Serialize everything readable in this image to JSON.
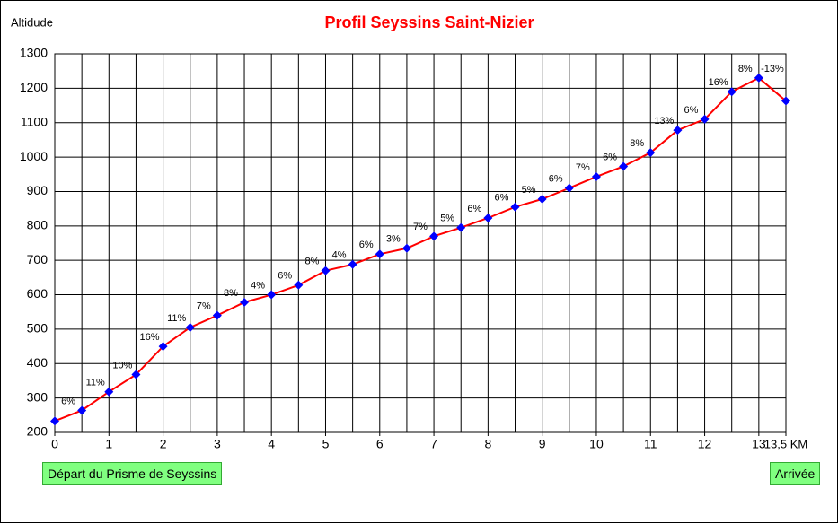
{
  "chart_data": {
    "type": "line",
    "title": "Profil Seyssins Saint-Nizier",
    "y_label": "Altidude",
    "x": [
      0,
      0.5,
      1,
      1.5,
      2,
      2.5,
      3,
      3.5,
      4,
      4.5,
      5,
      5.5,
      6,
      6.5,
      7,
      7.5,
      8,
      8.5,
      9,
      9.5,
      10,
      10.5,
      11,
      11.5,
      12,
      12.5,
      13,
      13.5
    ],
    "series": [
      {
        "color": "#ff0000",
        "marker_color": "#0000ff",
        "values": [
          233,
          264,
          318,
          368,
          450,
          505,
          540,
          578,
          600,
          628,
          670,
          688,
          718,
          735,
          770,
          795,
          823,
          855,
          878,
          910,
          943,
          973,
          1013,
          1078,
          1110,
          1190,
          1230,
          1163
        ]
      }
    ],
    "grades": [
      6,
      11,
      10,
      16,
      11,
      7,
      8,
      4,
      6,
      8,
      4,
      6,
      3,
      7,
      5,
      6,
      6,
      5,
      6,
      7,
      6,
      8,
      13,
      6,
      16,
      8,
      -13
    ],
    "grade_labels": [
      "6%",
      "11%",
      "10%",
      "16%",
      "11%",
      "7%",
      "8%",
      "4%",
      "6%",
      "8%",
      "4%",
      "6%",
      "3%",
      "7%",
      "5%",
      "6%",
      "6%",
      "5%",
      "6%",
      "7%",
      "6%",
      "8%",
      "13%",
      "6%",
      "16%",
      "8%",
      "-13%"
    ],
    "xlim": [
      0,
      13.5
    ],
    "ylim": [
      200,
      1300
    ],
    "xticks": [
      0,
      1,
      2,
      3,
      4,
      5,
      6,
      7,
      8,
      9,
      10,
      11,
      12,
      13,
      {
        "value": 13.5,
        "label": "13,5 KM"
      }
    ],
    "yticks": [
      200,
      300,
      400,
      500,
      600,
      700,
      800,
      900,
      1000,
      1100,
      1200,
      1300
    ],
    "grid": true,
    "start_button": "Départ du Prisme de Seyssins",
    "end_button": "Arrivée"
  }
}
